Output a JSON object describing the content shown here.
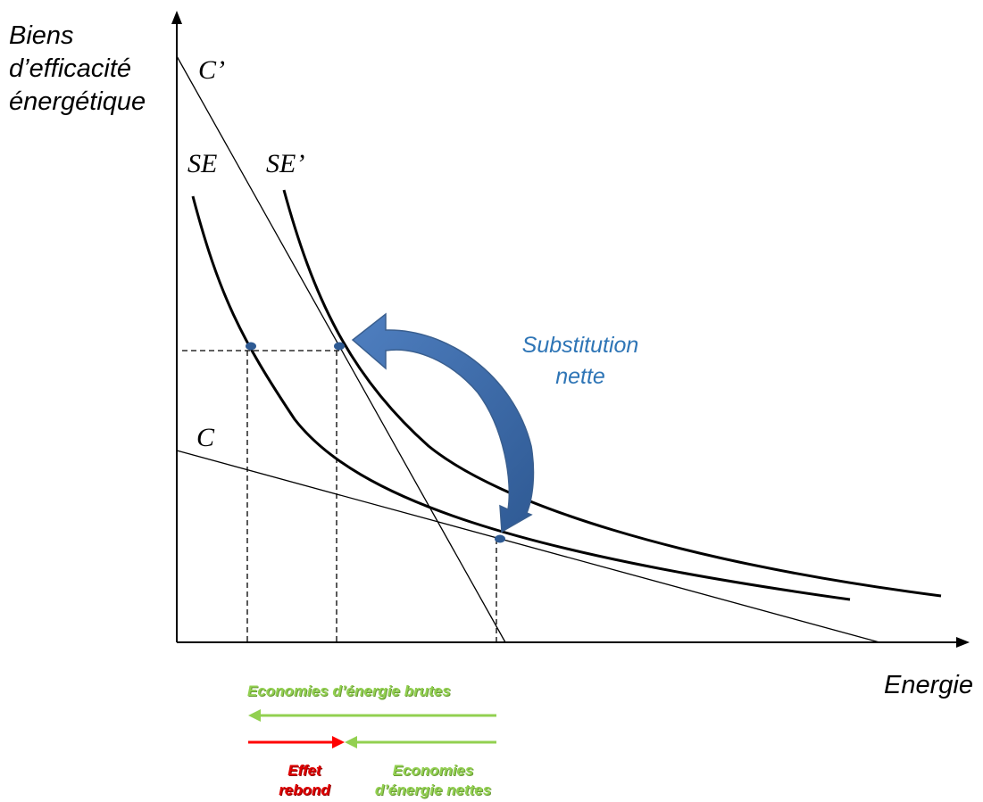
{
  "axes": {
    "y_label": "Biens\nd’efficacité\nénergétique",
    "x_label": "Energie"
  },
  "curves": {
    "se": "SE",
    "se_prime": "SE’",
    "c": "C",
    "c_prime": "C’"
  },
  "annotation": {
    "substitution": "Substitution\nnette"
  },
  "legend": {
    "gross_savings": "Economies d’énergie brutes",
    "rebound": "Effet\nrebond",
    "net_savings": "Economies\nd’énergie nettes"
  },
  "colors": {
    "green": "#92d050",
    "red": "#ff0000",
    "blue": "#2e75b6",
    "blue_dark": "#3a5f8f"
  }
}
